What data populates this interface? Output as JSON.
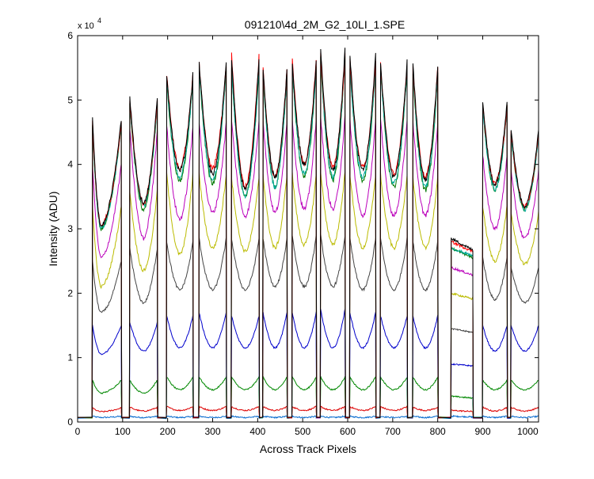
{
  "figure": {
    "title": "091210\\4d_2M_G2_10LI_1.SPE",
    "xlabel": "Across Track Pixels",
    "ylabel": "Intensity (ADU)",
    "y_multiplier_base": "x 10",
    "y_multiplier_exp": "4"
  },
  "chart_data": {
    "type": "line",
    "title": "091210\\4d_2M_G2_10LI_1.SPE",
    "xlabel": "Across Track Pixels",
    "ylabel": "Intensity (ADU)",
    "y_scale_note": "x 10^4",
    "xlim": [
      0,
      1024
    ],
    "ylim": [
      0,
      60000
    ],
    "grid": false,
    "legend": "none",
    "x_ticks": [
      0,
      100,
      200,
      300,
      400,
      500,
      600,
      700,
      800,
      900,
      1000
    ],
    "y_ticks": [
      0,
      1,
      2,
      3,
      4,
      5,
      6
    ],
    "segments": [
      {
        "start": 33,
        "end": 97,
        "dip_frac": 0.3
      },
      {
        "start": 116,
        "end": 177,
        "dip_frac": 0.5
      },
      {
        "start": 198,
        "end": 256,
        "dip_frac": 0.5
      },
      {
        "start": 270,
        "end": 330,
        "dip_frac": 0.5
      },
      {
        "start": 342,
        "end": 403,
        "dip_frac": 0.5
      },
      {
        "start": 412,
        "end": 465,
        "dip_frac": 0.5
      },
      {
        "start": 477,
        "end": 530,
        "dip_frac": 0.5
      },
      {
        "start": 540,
        "end": 594,
        "dip_frac": 0.5
      },
      {
        "start": 605,
        "end": 662,
        "dip_frac": 0.5
      },
      {
        "start": 673,
        "end": 732,
        "dip_frac": 0.5
      },
      {
        "start": 745,
        "end": 800,
        "dip_frac": 0.5
      },
      {
        "start": 830,
        "end": 878,
        "dip_frac": 0.5,
        "flat": true
      },
      {
        "start": 900,
        "end": 954,
        "dip_frac": 0.5
      },
      {
        "start": 963,
        "end": 1024,
        "dip_frac": 0.5
      }
    ],
    "series": [
      {
        "color": "#000000",
        "peaks": [
          47000,
          50500,
          54000,
          56000,
          56500,
          55000,
          56000,
          58000,
          57000,
          56000,
          55500,
          28500,
          50000,
          45500
        ],
        "troughs": [
          30500,
          34000,
          39000,
          38500,
          36000,
          38000,
          40000,
          39000,
          39000,
          38000,
          37500,
          25500,
          37000,
          33500
        ],
        "baseline": 700
      },
      {
        "color": "#ff0000",
        "peaks": [
          46500,
          50000,
          54000,
          55500,
          57000,
          55000,
          56500,
          57000,
          56000,
          55500,
          55000,
          28000,
          49500,
          45000
        ],
        "troughs": [
          30500,
          34000,
          39500,
          39500,
          36500,
          38000,
          40000,
          39500,
          39500,
          38500,
          38000,
          25500,
          37000,
          33500
        ],
        "baseline": 700
      },
      {
        "color": "#00aa99",
        "peaks": [
          46000,
          49500,
          53000,
          55000,
          55000,
          54000,
          55000,
          56500,
          55000,
          55000,
          54000,
          27000,
          49000,
          44500
        ],
        "troughs": [
          30000,
          33500,
          38000,
          37500,
          35000,
          36500,
          38500,
          38000,
          38000,
          37000,
          36500,
          25000,
          36000,
          33000
        ],
        "baseline": 700
      },
      {
        "color": "#007700",
        "peaks": [
          46000,
          49500,
          53000,
          55000,
          55000,
          54000,
          55000,
          56500,
          55000,
          55000,
          54000,
          27000,
          49000,
          44500
        ],
        "troughs": [
          30000,
          33000,
          37500,
          37000,
          35000,
          36500,
          38000,
          37500,
          37500,
          36500,
          36000,
          24500,
          36000,
          33000
        ],
        "baseline": 700
      },
      {
        "color": "#bb00bb",
        "peaks": [
          40000,
          45500,
          46000,
          46500,
          47000,
          47000,
          47000,
          47500,
          47000,
          47000,
          46500,
          24000,
          41500,
          39000
        ],
        "troughs": [
          25500,
          28500,
          31500,
          32500,
          32000,
          32500,
          33000,
          33000,
          32000,
          32000,
          32000,
          22000,
          30000,
          28500
        ],
        "baseline": 700
      },
      {
        "color": "#bbbb00",
        "peaks": [
          33500,
          36000,
          38500,
          38500,
          38000,
          38500,
          38500,
          39000,
          38500,
          38500,
          38000,
          20000,
          33500,
          32500
        ],
        "troughs": [
          21000,
          23500,
          26000,
          27000,
          26500,
          27000,
          27500,
          27500,
          27000,
          27000,
          27000,
          18500,
          25000,
          24500
        ],
        "baseline": 700
      },
      {
        "color": "#444444",
        "peaks": [
          25000,
          27000,
          28000,
          28500,
          28500,
          28500,
          29000,
          29000,
          28500,
          28500,
          28000,
          14500,
          25500,
          24000
        ],
        "troughs": [
          17000,
          18500,
          20500,
          20500,
          20500,
          21000,
          21000,
          21000,
          20500,
          20500,
          20500,
          13500,
          19000,
          18500
        ],
        "baseline": 700
      },
      {
        "color": "#0000cc",
        "peaks": [
          15000,
          15500,
          16500,
          17000,
          16500,
          17000,
          17000,
          17500,
          17000,
          16500,
          16500,
          9000,
          15000,
          15000
        ],
        "troughs": [
          10500,
          11000,
          11500,
          11500,
          11500,
          11500,
          11500,
          11500,
          11500,
          11500,
          11500,
          8500,
          11000,
          11000
        ],
        "baseline": 700
      },
      {
        "color": "#008800",
        "peaks": [
          6500,
          6500,
          7000,
          7000,
          7000,
          7000,
          7000,
          7000,
          7000,
          7000,
          7000,
          4000,
          6500,
          6500
        ],
        "troughs": [
          4500,
          4500,
          5000,
          5000,
          5000,
          5000,
          5000,
          5000,
          5000,
          5000,
          5000,
          3500,
          5000,
          5000
        ],
        "baseline": 700
      },
      {
        "color": "#dd0000",
        "peaks": [
          2200,
          2300,
          2400,
          2400,
          2400,
          2400,
          2400,
          2400,
          2400,
          2400,
          2300,
          1800,
          2300,
          2300
        ],
        "troughs": [
          1600,
          1700,
          1800,
          1800,
          1800,
          1800,
          1800,
          1800,
          1800,
          1800,
          1800,
          1500,
          1700,
          1700
        ],
        "baseline": 700
      },
      {
        "color": "#0066cc",
        "peaks": [
          900,
          900,
          900,
          900,
          900,
          900,
          900,
          900,
          900,
          900,
          900,
          900,
          900,
          900
        ],
        "troughs": [
          700,
          700,
          700,
          700,
          700,
          700,
          700,
          700,
          700,
          700,
          700,
          700,
          700,
          700
        ],
        "baseline": 600
      }
    ]
  }
}
